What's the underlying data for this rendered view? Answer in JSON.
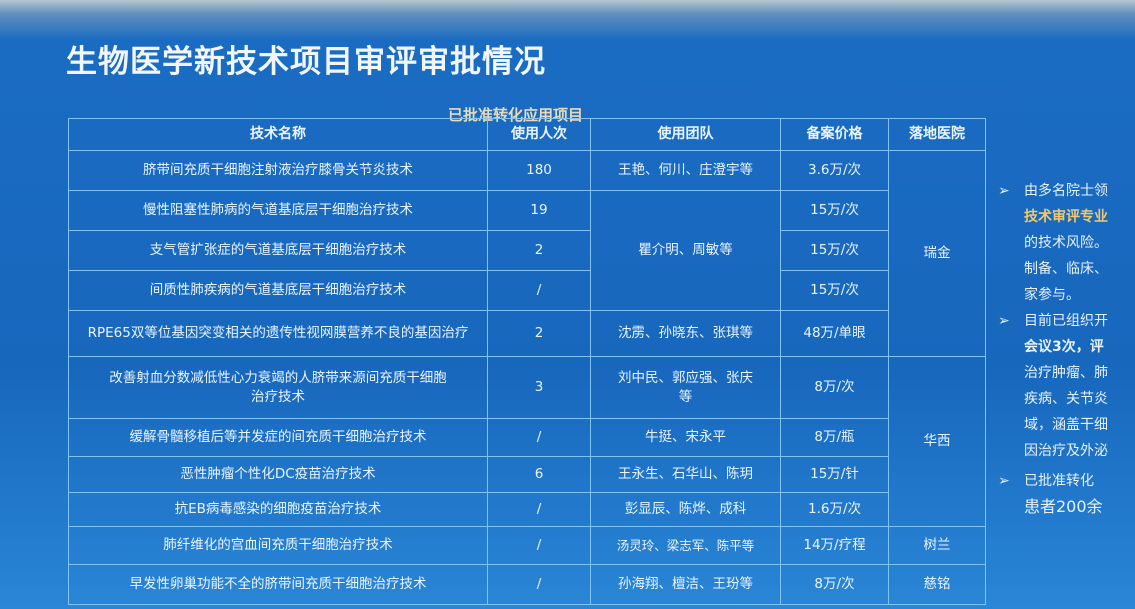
{
  "title": "生物医学新技术项目审评审批情况",
  "subtitle": "已批准转化应用项目",
  "table": {
    "headers": [
      "技术名称",
      "使用人次",
      "使用团队",
      "备案价格",
      "落地医院"
    ],
    "rows": [
      {
        "name": "脐带间充质干细胞注射液治疗膝骨关节炎技术",
        "count": "180",
        "team": "王艳、何川、庄澄宇等",
        "price": "3.6万/次",
        "hospital": "瑞金"
      },
      {
        "name": "慢性阻塞性肺病的气道基底层干细胞治疗技术",
        "count": "19",
        "team": "瞿介明、周敏等",
        "price": "15万/次"
      },
      {
        "name": "支气管扩张症的气道基底层干细胞治疗技术",
        "count": "2",
        "price": "15万/次"
      },
      {
        "name": "间质性肺疾病的气道基底层干细胞治疗技术",
        "count": "/",
        "price": "15万/次"
      },
      {
        "name": "RPE65双等位基因突变相关的遗传性视网膜营养不良的基因治疗",
        "count": "2",
        "team": "沈雳、孙晓东、张琪等",
        "price": "48万/单眼"
      },
      {
        "name": "改善射血分数减低性心力衰竭的人脐带来源间充质干细胞治疗技术",
        "count": "3",
        "team": "刘中民、郭应强、张庆等",
        "price": "8万/次",
        "hospital": "华西"
      },
      {
        "name": "缓解骨髓移植后等并发症的间充质干细胞治疗技术",
        "count": "/",
        "team": "牛挺、宋永平",
        "price": "8万/瓶"
      },
      {
        "name": "恶性肿瘤个性化DC疫苗治疗技术",
        "count": "6",
        "team": "王永生、石华山、陈玥",
        "price": "15万/针"
      },
      {
        "name": "抗EB病毒感染的细胞疫苗治疗技术",
        "count": "/",
        "team": "彭显辰、陈烨、成科",
        "price": "1.6万/次"
      },
      {
        "name": "肺纤维化的宫血间充质干细胞治疗技术",
        "count": "/",
        "team": "汤灵玲、梁志军、陈平等",
        "price": "14万/疗程",
        "hospital": "树兰"
      },
      {
        "name": "早发性卵巢功能不全的脐带间充质干细胞治疗技术",
        "count": "/",
        "team": "孙海翔、檀洁、王玢等",
        "price": "8万/次",
        "hospital": "慈铭"
      }
    ]
  },
  "right_panel": {
    "bullet_icon": "arrow-bullet-icon",
    "highlight_color": "#f0c96a",
    "bullets": [
      {
        "lines": [
          "由多名院士领",
          "技术审评专业",
          "的技术风险。",
          "制备、临床、",
          "家参与。"
        ]
      },
      {
        "lines": [
          "目前已组织开",
          "会议3次，评",
          "治疗肿瘤、肺",
          "疾病、关节炎",
          "域，涵盖干细",
          "因治疗及外泌"
        ]
      },
      {
        "lines": [
          "已批准转化",
          "患者200余"
        ]
      }
    ]
  }
}
